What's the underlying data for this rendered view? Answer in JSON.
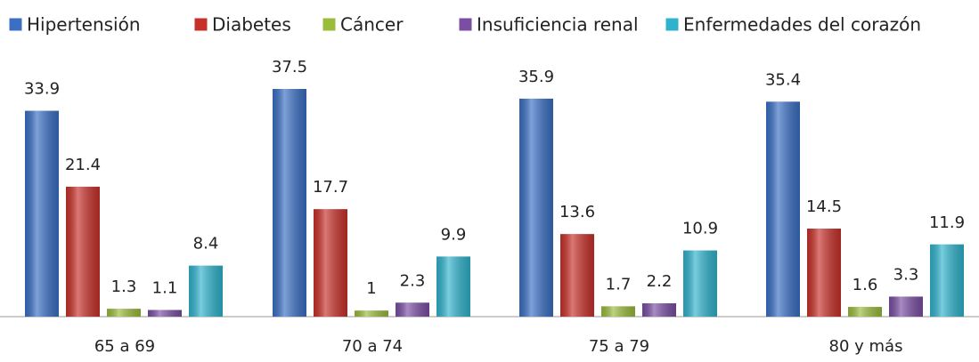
{
  "chart_data": {
    "type": "bar",
    "categories": [
      "65 a 69",
      "70 a 74",
      "75 a 79",
      "80 y más"
    ],
    "series": [
      {
        "name": "Hipertensión",
        "color": "#3a6fc4",
        "values": [
          33.9,
          37.5,
          35.9,
          35.4
        ]
      },
      {
        "name": "Diabetes",
        "color": "#c8302a",
        "values": [
          21.4,
          17.7,
          13.6,
          14.5
        ]
      },
      {
        "name": "Cáncer",
        "color": "#9bbb3b",
        "values": [
          1.3,
          1,
          1.7,
          1.6
        ]
      },
      {
        "name": "Insuficiencia renal",
        "color": "#7a4ea3",
        "values": [
          1.1,
          2.3,
          2.2,
          3.3
        ]
      },
      {
        "name": "Enfermedades del corazón",
        "color": "#2fb3cc",
        "values": [
          8.4,
          9.9,
          10.9,
          11.9
        ]
      }
    ],
    "legend": "top"
  }
}
